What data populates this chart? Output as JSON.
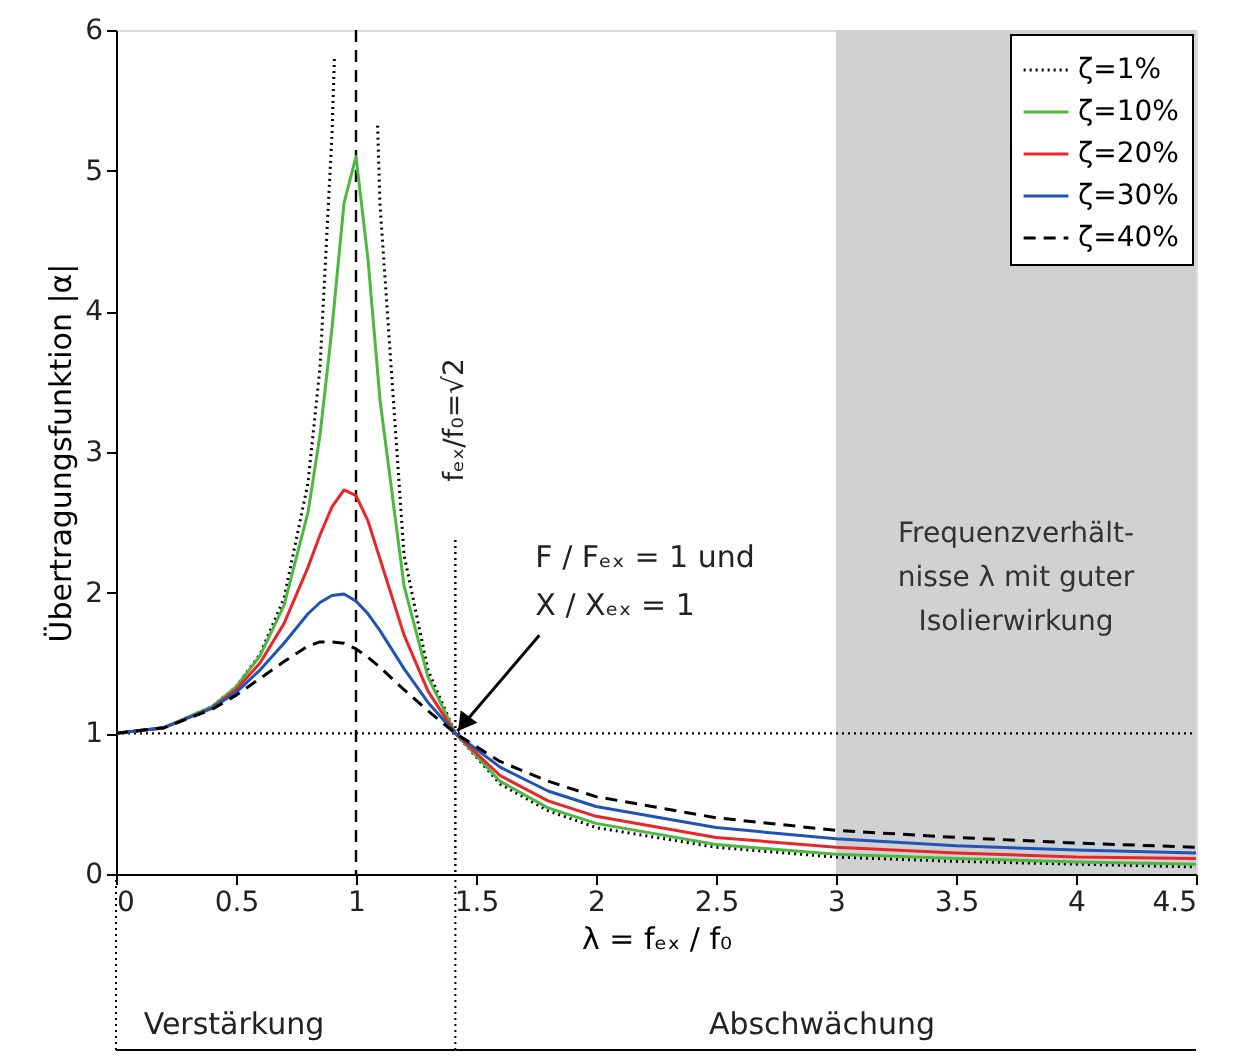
{
  "chart_data": {
    "type": "line",
    "xlabel": "λ = fₑₓ / f₀",
    "ylabel": "Übertragungsfunktion |α|",
    "x": [
      0,
      0.2,
      0.4,
      0.5,
      0.6,
      0.7,
      0.8,
      0.85,
      0.9,
      0.95,
      1.0,
      1.05,
      1.1,
      1.2,
      1.3,
      1.414,
      1.6,
      1.8,
      2,
      2.5,
      3,
      3.5,
      4,
      4.5
    ],
    "series": [
      {
        "name": "ζ=1%",
        "color": "#000000",
        "line_style": "dotted",
        "x": [
          0,
          0.2,
          0.4,
          0.5,
          0.6,
          0.7,
          0.8,
          0.85,
          0.9,
          0.91,
          0.95,
          1.05,
          1.09,
          1.1,
          1.2,
          1.3,
          1.414,
          1.6,
          1.8,
          2,
          2.5,
          3,
          3.5,
          4,
          4.5
        ],
        "values": [
          1,
          1.04,
          1.19,
          1.33,
          1.56,
          1.96,
          2.78,
          3.6,
          5.26,
          5.8,
          null,
          null,
          5.32,
          4.76,
          2.27,
          1.45,
          1.0,
          0.64,
          0.45,
          0.33,
          0.19,
          0.12,
          0.09,
          0.07,
          0.05
        ]
      },
      {
        "name": "ζ=10%",
        "color": "#4cb840",
        "line_style": "solid",
        "values": [
          1,
          1.04,
          1.19,
          1.33,
          1.55,
          1.91,
          2.57,
          3.12,
          3.88,
          4.77,
          5.1,
          4.37,
          3.37,
          2.05,
          1.4,
          1.0,
          0.66,
          0.47,
          0.36,
          0.21,
          0.14,
          0.11,
          0.085,
          0.07
        ]
      },
      {
        "name": "ζ=20%",
        "color": "#e8262a",
        "line_style": "solid",
        "values": [
          1,
          1.04,
          1.18,
          1.31,
          1.5,
          1.78,
          2.18,
          2.41,
          2.61,
          2.73,
          2.69,
          2.51,
          2.24,
          1.7,
          1.3,
          1.0,
          0.7,
          0.52,
          0.41,
          0.26,
          0.19,
          0.15,
          0.12,
          0.11
        ]
      },
      {
        "name": "ζ=30%",
        "color": "#1f54b4",
        "line_style": "solid",
        "values": [
          1,
          1.04,
          1.18,
          1.29,
          1.45,
          1.64,
          1.85,
          1.93,
          1.98,
          1.99,
          1.94,
          1.85,
          1.73,
          1.46,
          1.22,
          1.0,
          0.76,
          0.59,
          0.48,
          0.33,
          0.25,
          0.2,
          0.17,
          0.15
        ]
      },
      {
        "name": "ζ=40%",
        "color": "#000000",
        "line_style": "dashed",
        "values": [
          1,
          1.04,
          1.17,
          1.27,
          1.39,
          1.51,
          1.62,
          1.65,
          1.65,
          1.64,
          1.6,
          1.54,
          1.47,
          1.31,
          1.16,
          1.0,
          0.8,
          0.66,
          0.55,
          0.4,
          0.31,
          0.26,
          0.22,
          0.19
        ]
      }
    ],
    "xlim": [
      0,
      4.5
    ],
    "xticks": [
      0,
      0.5,
      1,
      1.5,
      2,
      2.5,
      3,
      3.5,
      4,
      4.5
    ],
    "ylim": [
      0,
      6
    ],
    "yticks": [
      0,
      1,
      2,
      3,
      4,
      5,
      6
    ],
    "grid": false,
    "legend": "top right",
    "marker": "none",
    "ref_lines": [
      {
        "axis": "x",
        "value": 1,
        "line_style": "dashed",
        "color": "#000000"
      },
      {
        "axis": "y",
        "value": 1,
        "line_style": "dotted",
        "color": "#000000"
      },
      {
        "axis": "x",
        "value": 1.414,
        "line_style": "dotted",
        "color": "#000000",
        "label": "fₑₓ/f₀=√2"
      }
    ],
    "bands": [
      {
        "axis": "x",
        "from": 3,
        "to": 4.5,
        "color": "#d0d1d3",
        "label": "Frequenzverhält-\nnisse λ mit guter\nIsolierwirkung"
      }
    ],
    "annotations": [
      {
        "text": "F / Fₑₓ = 1 und\nX / Xₑₓ = 1",
        "x": 1.414,
        "y": 1
      },
      "Verstärkung",
      "Abschwächung"
    ]
  }
}
